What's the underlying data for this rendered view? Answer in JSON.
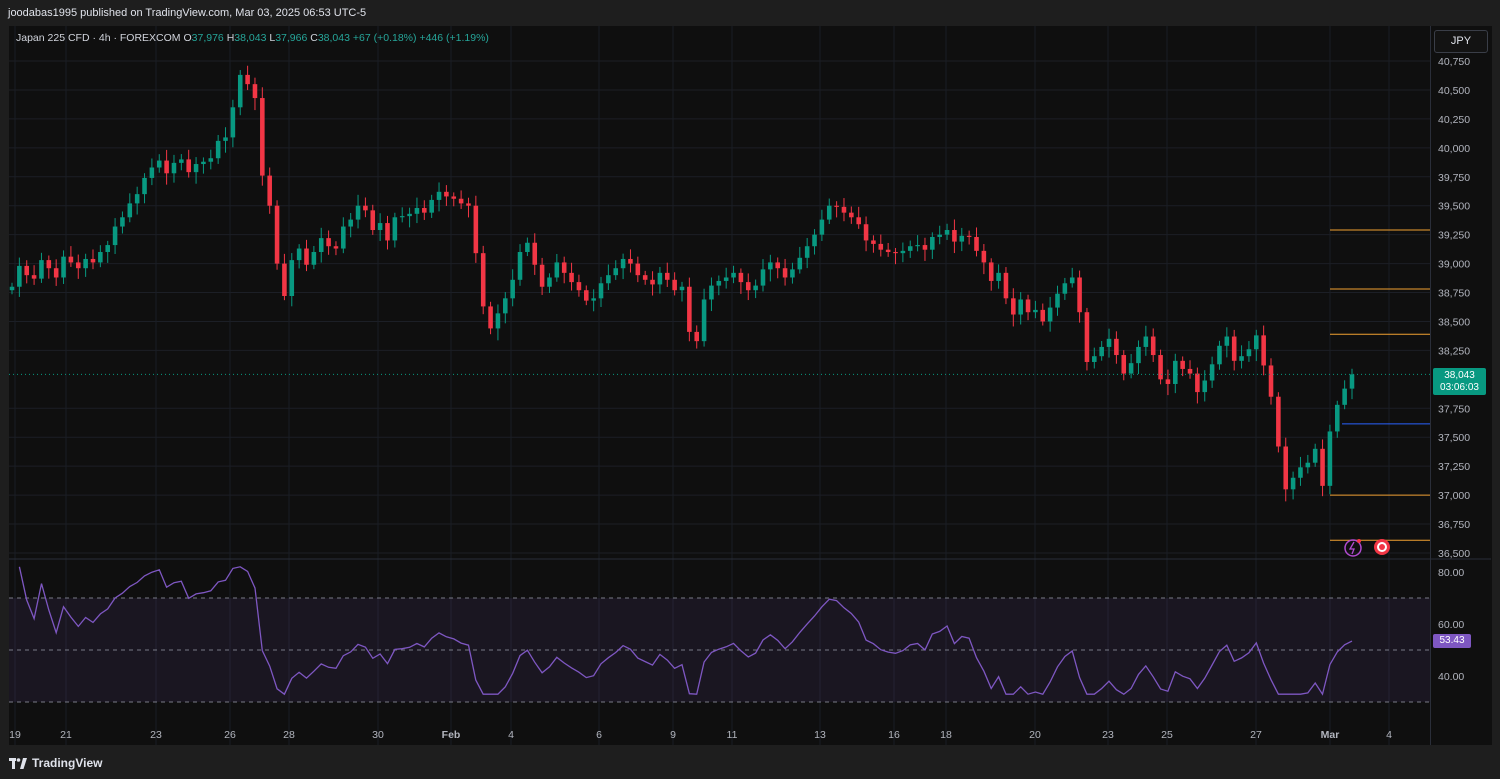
{
  "header": {
    "published_by": "joodabas1995 published on TradingView.com, Mar 03, 2025 06:53 UTC-5"
  },
  "legend": {
    "symbol": "Japan 225 CFD · 4h · FOREXCOM",
    "open_label": "O",
    "open": "37,976",
    "high_label": "H",
    "high": "38,043",
    "low_label": "L",
    "low": "37,966",
    "close_label": "C",
    "close": "38,043",
    "change": "+67 (+0.18%)",
    "change2": "+446 (+1.19%)"
  },
  "currency_button": "JPY",
  "last_price": {
    "value": "38,043",
    "countdown": "03:06:03"
  },
  "rsi_value": "53.43",
  "footer": {
    "brand": "TradingView"
  },
  "colors": {
    "up": "#089981",
    "down": "#f23645",
    "rsi": "#7e57c2",
    "level": "#f0a030",
    "support": "#2962ff"
  },
  "chart_data": {
    "type": "candlestick",
    "title": "Japan 225 CFD · 4h · FOREXCOM",
    "price_axis": {
      "range": [
        36450,
        40850
      ],
      "ticks": [
        "40,750",
        "40,500",
        "40,250",
        "40,000",
        "39,750",
        "39,500",
        "39,250",
        "39,000",
        "38,750",
        "38,500",
        "38,250",
        "37,750",
        "37,500",
        "37,250",
        "37,000",
        "36,750",
        "36,500"
      ]
    },
    "time_axis": {
      "labels": [
        "19",
        "21",
        "23",
        "26",
        "28",
        "30",
        "Feb",
        "4",
        "6",
        "9",
        "11",
        "13",
        "16",
        "18",
        "20",
        "23",
        "25",
        "27",
        "Mar",
        "4"
      ]
    },
    "horizontal_levels": [
      39290,
      38780,
      38390,
      37615,
      37000,
      36610
    ],
    "support_line": 37615,
    "current_price": 38043,
    "candles_close": [
      38800,
      38980,
      38900,
      38870,
      39030,
      38960,
      38880,
      39060,
      39010,
      38960,
      39040,
      39010,
      39100,
      39160,
      39320,
      39400,
      39520,
      39600,
      39740,
      39830,
      39890,
      39780,
      39870,
      39900,
      39790,
      39860,
      39880,
      39910,
      40060,
      40090,
      40350,
      40630,
      40550,
      40430,
      39760,
      39500,
      39000,
      38720,
      39030,
      39130,
      38990,
      39100,
      39220,
      39150,
      39130,
      39320,
      39380,
      39500,
      39460,
      39290,
      39350,
      39200,
      39400,
      39410,
      39430,
      39480,
      39440,
      39550,
      39620,
      39580,
      39560,
      39520,
      39500,
      39090,
      38630,
      38440,
      38570,
      38700,
      38860,
      39100,
      39180,
      38990,
      38800,
      38880,
      39010,
      38920,
      38840,
      38770,
      38680,
      38700,
      38830,
      38900,
      38960,
      39040,
      39000,
      38900,
      38860,
      38820,
      38920,
      38860,
      38770,
      38800,
      38410,
      38330,
      38690,
      38810,
      38850,
      38880,
      38920,
      38840,
      38770,
      38810,
      38950,
      39010,
      38960,
      38880,
      38950,
      39050,
      39150,
      39250,
      39380,
      39500,
      39490,
      39440,
      39400,
      39340,
      39200,
      39170,
      39120,
      39100,
      39090,
      39110,
      39150,
      39160,
      39120,
      39230,
      39250,
      39290,
      39190,
      39240,
      39230,
      39110,
      39010,
      38850,
      38920,
      38700,
      38560,
      38690,
      38580,
      38600,
      38500,
      38620,
      38740,
      38830,
      38880,
      38580,
      38150,
      38200,
      38280,
      38350,
      38210,
      38050,
      38140,
      38280,
      38370,
      38210,
      38000,
      37960,
      38160,
      38090,
      38050,
      37890,
      37990,
      38130,
      38290,
      38370,
      38160,
      38200,
      38260,
      38380,
      38120,
      37850,
      37420,
      37050,
      37150,
      37240,
      37280,
      37400,
      37080,
      37550,
      37780,
      37920,
      38043
    ],
    "rsi": {
      "range": [
        30,
        85
      ],
      "ticks": [
        "80.00",
        "60.00",
        "40.00"
      ],
      "overbought": 70,
      "midline": 50,
      "oversold": 30,
      "current": 53.43
    }
  }
}
